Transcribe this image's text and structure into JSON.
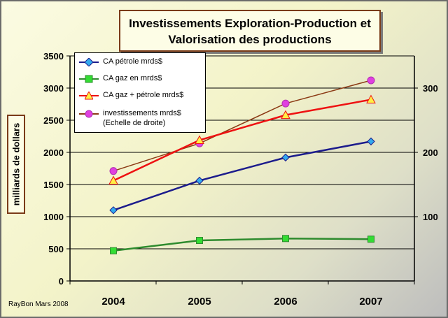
{
  "chart_data": {
    "type": "line",
    "title_line1": "Investissements Exploration-Production et",
    "title_line2": "Valorisation des productions",
    "ylabel": "milliards de dollars",
    "categories": [
      "2004",
      "2005",
      "2006",
      "2007"
    ],
    "y_left": {
      "min": 0,
      "max": 3500,
      "step": 500,
      "ticks": [
        "0",
        "500",
        "1000",
        "1500",
        "2000",
        "2500",
        "3000",
        "3500"
      ]
    },
    "y_right": {
      "min": 0,
      "max": 350,
      "ticks": [
        100,
        200,
        300
      ],
      "tick_labels": [
        "100",
        "200",
        "300"
      ]
    },
    "series": [
      {
        "name": "CA pétrole mrds$",
        "axis": "left",
        "values": [
          1100,
          1560,
          1920,
          2170
        ],
        "color": "#1c1c8c",
        "marker_color": "#33aaee",
        "marker": "diamond"
      },
      {
        "name": "CA gaz en mrds$",
        "axis": "left",
        "values": [
          470,
          630,
          660,
          650
        ],
        "color": "#2e8b2e",
        "marker_color": "#33dd33",
        "marker": "square"
      },
      {
        "name": "CA gaz + pétrole mrds$",
        "axis": "left",
        "values": [
          1560,
          2190,
          2580,
          2820
        ],
        "color": "#ee1111",
        "marker_color": "#ffee44",
        "marker": "triangle"
      },
      {
        "name": "investissements mrds$",
        "name_line2": "(Echelle de droite)",
        "axis": "right",
        "values": [
          171,
          214,
          276,
          312
        ],
        "color": "#8b3a14",
        "marker_color": "#e040e0",
        "marker": "circle"
      }
    ],
    "grid": true,
    "legend": "top-left"
  },
  "footer": "RayBon Mars 2008"
}
